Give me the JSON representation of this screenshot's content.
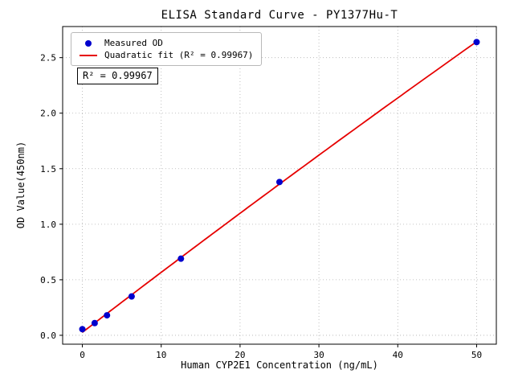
{
  "chart_data": {
    "type": "scatter",
    "title": "ELISA Standard Curve - PY1377Hu-T",
    "xlabel": "Human CYP2E1 Concentration (ng/mL)",
    "ylabel": "OD Value(450nm)",
    "xlim": [
      -2.5,
      52.5
    ],
    "ylim": [
      -0.08,
      2.78
    ],
    "x_ticks": [
      0,
      10,
      20,
      30,
      40,
      50
    ],
    "x_tick_labels": [
      "0",
      "10",
      "20",
      "30",
      "40",
      "50"
    ],
    "y_ticks": [
      0.0,
      0.5,
      1.0,
      1.5,
      2.0,
      2.5
    ],
    "y_tick_labels": [
      "0.0",
      "0.5",
      "1.0",
      "1.5",
      "2.0",
      "2.5"
    ],
    "grid": "dotted",
    "grid_color": "#b0b0b0",
    "legend_position": "upper-left",
    "series": [
      {
        "name": "Measured OD",
        "type": "scatter",
        "color": "#0000cd",
        "x": [
          0,
          1.5625,
          3.125,
          6.25,
          12.5,
          25,
          50
        ],
        "y": [
          0.055,
          0.11,
          0.18,
          0.35,
          0.69,
          1.38,
          2.64
        ]
      },
      {
        "name": "Quadratic fit (R² = 0.99967)",
        "type": "line",
        "fit": "quadratic",
        "color": "#e60000"
      }
    ],
    "annotation": "R² = 0.99967",
    "r_squared": 0.99967
  }
}
